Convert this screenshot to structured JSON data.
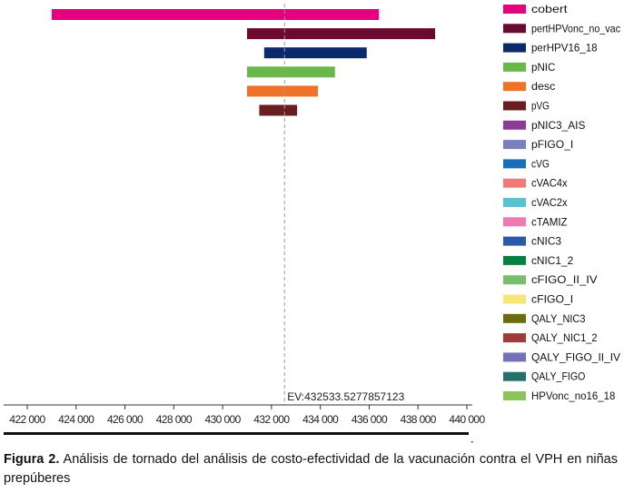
{
  "chart_data": {
    "type": "tornado",
    "ev_label": "EV:432533.5277857123",
    "ev_value": 432533.5277857123,
    "xlim": [
      422000,
      440000
    ],
    "xticks": [
      422000,
      424000,
      426000,
      428000,
      430000,
      432000,
      434000,
      436000,
      438000,
      440000
    ],
    "xtick_labels": [
      "422 000",
      "424 000",
      "426 000",
      "428 000",
      "430 000",
      "432 000",
      "434 000",
      "436 000",
      "438 000",
      "440 000"
    ],
    "bars": [
      {
        "name": "cobert",
        "low": 423000,
        "high": 436400,
        "color": "#e5007e"
      },
      {
        "name": "pertHPVonc_no_vac",
        "low": 431000,
        "high": 438700,
        "color": "#6b0a2e"
      },
      {
        "name": "perHPV16_18",
        "low": 431700,
        "high": 435900,
        "color": "#0a2a6b"
      },
      {
        "name": "pNIC",
        "low": 431000,
        "high": 434600,
        "color": "#6ab84a"
      },
      {
        "name": "desc",
        "low": 431000,
        "high": 433900,
        "color": "#f07228"
      },
      {
        "name": "pVG",
        "low": 431500,
        "high": 433050,
        "color": "#6b1e22"
      }
    ],
    "legend": [
      {
        "label": "cobert",
        "color": "#e5007e"
      },
      {
        "label": "pertHPVonc_no_vac",
        "color": "#6b0a2e"
      },
      {
        "label": "perHPV16_18",
        "color": "#0a2a6b"
      },
      {
        "label": "pNIC",
        "color": "#6ab84a"
      },
      {
        "label": "desc",
        "color": "#f07228"
      },
      {
        "label": "pVG",
        "color": "#6b1e22"
      },
      {
        "label": "pNIC3_AIS",
        "color": "#8b3a96"
      },
      {
        "label": "pFIGO_I",
        "color": "#7a7fc0"
      },
      {
        "label": "cVG",
        "color": "#1a6fb8"
      },
      {
        "label": "cVAC4x",
        "color": "#f07a7a"
      },
      {
        "label": "cVAC2x",
        "color": "#5bc0d0"
      },
      {
        "label": "cTAMIZ",
        "color": "#ee7aae"
      },
      {
        "label": "cNIC3",
        "color": "#2a5aa8"
      },
      {
        "label": "cNIC1_2",
        "color": "#0a8040"
      },
      {
        "label": "cFIGO_II_IV",
        "color": "#78be6e"
      },
      {
        "label": "cFIGO_I",
        "color": "#f5e67a"
      },
      {
        "label": "QALY_NIC3",
        "color": "#6b6b10"
      },
      {
        "label": "QALY_NIC1_2",
        "color": "#9e3a3a"
      },
      {
        "label": "QALY_FIGO_II_IV",
        "color": "#7272b8"
      },
      {
        "label": "QALY_FIGO",
        "color": "#257068"
      },
      {
        "label": "HPVonc_no16_18",
        "color": "#8cc45a"
      }
    ]
  },
  "caption": {
    "label": "Figura 2.",
    "text": " Análisis de tornado del análisis de costo-efectividad de la vacunación contra el VPH en niñas prepúberes"
  }
}
